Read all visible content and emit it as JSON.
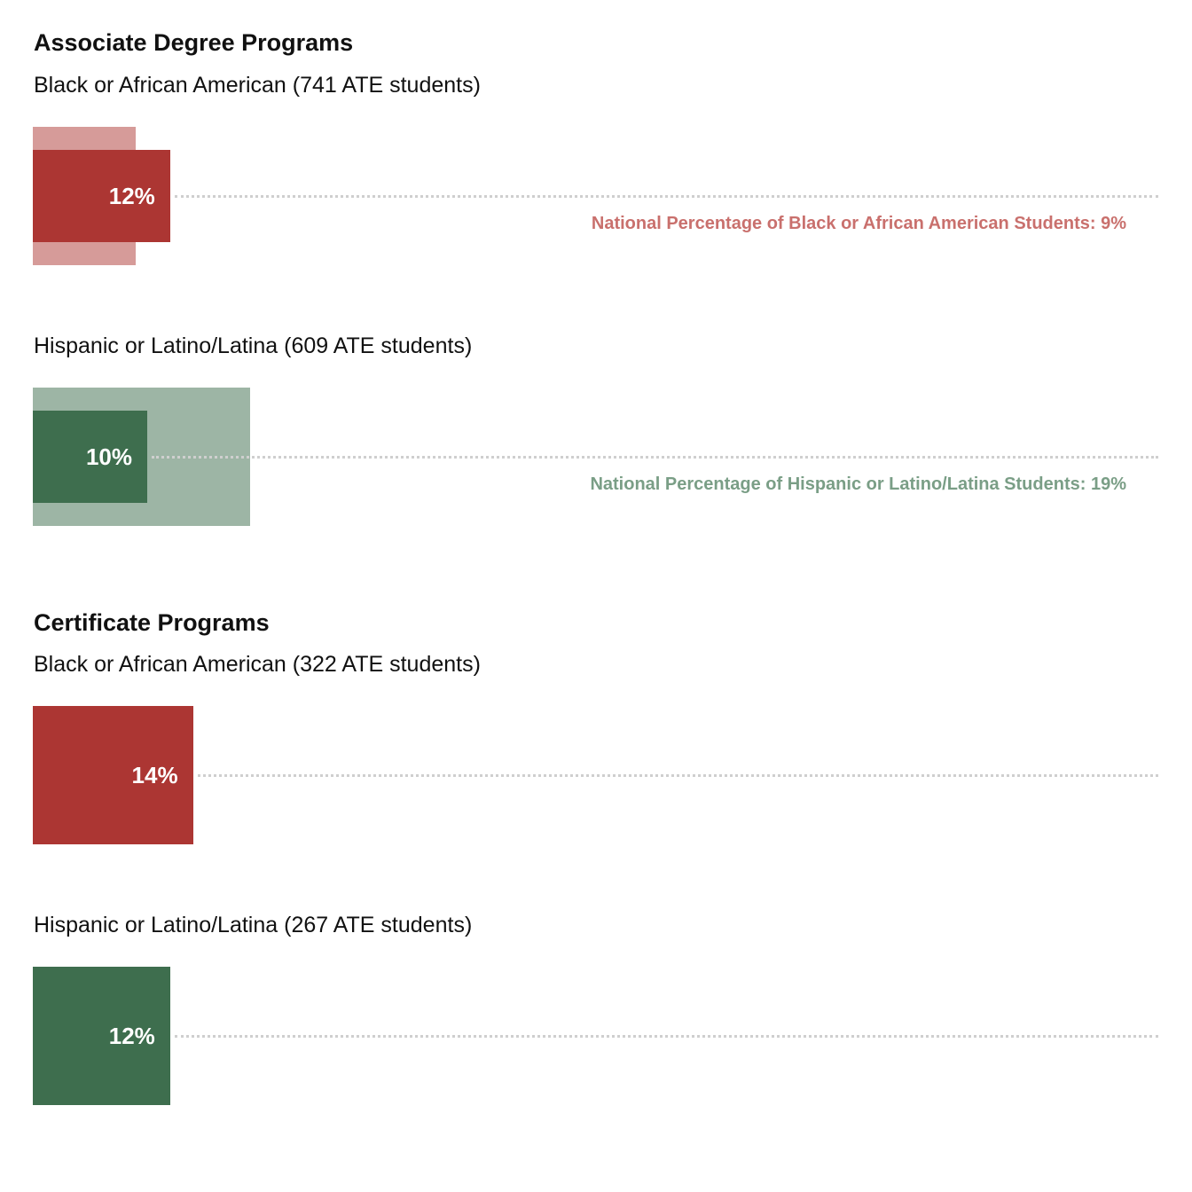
{
  "colors": {
    "black_bar": "#ac3633",
    "black_national": "#d69b99",
    "black_national_text": "#c9706d",
    "hispanic_bar": "#3e6e4e",
    "hispanic_national": "#9db5a5",
    "hispanic_national_text": "#7a9e86",
    "dotted_line": "#cfcfcf"
  },
  "chart_data": [
    {
      "type": "bar",
      "title": "Associate Degree Programs",
      "series": [
        {
          "label": "Black or African American (741 ATE students)",
          "value": 12,
          "value_label": "12%",
          "national_value": 9,
          "national_label": "National Percentage of Black or African American Students: 9%",
          "color_key": "black"
        },
        {
          "label": "Hispanic or Latino/Latina (609 ATE students)",
          "value": 10,
          "value_label": "10%",
          "national_value": 19,
          "national_label": "National Percentage of Hispanic or Latino/Latina Students: 19%",
          "color_key": "hispanic"
        }
      ]
    },
    {
      "type": "bar",
      "title": "Certificate Programs",
      "series": [
        {
          "label": "Black or African American (322 ATE students)",
          "value": 14,
          "value_label": "14%",
          "color_key": "black"
        },
        {
          "label": "Hispanic or Latino/Latina (267 ATE students)",
          "value": 12,
          "value_label": "12%",
          "color_key": "hispanic"
        }
      ]
    }
  ]
}
